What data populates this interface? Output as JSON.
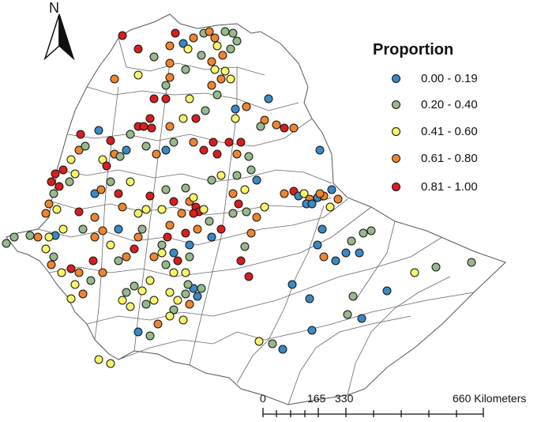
{
  "north_arrow_label": "N",
  "legend": {
    "title": "Proportion",
    "classes": [
      {
        "label": "0.00 - 0.19",
        "color": "#3a89c4"
      },
      {
        "label": "0.20 - 0.40",
        "color": "#97b98b"
      },
      {
        "label": "0.41 - 0.60",
        "color": "#f7f56a"
      },
      {
        "label": "0.61 - 0.80",
        "color": "#ef8530"
      },
      {
        "label": "0.81 - 1.00",
        "color": "#d71f20"
      }
    ]
  },
  "scale_bar": {
    "ticks": [
      "0",
      "165",
      "330",
      "660 Kilometers"
    ]
  }
}
